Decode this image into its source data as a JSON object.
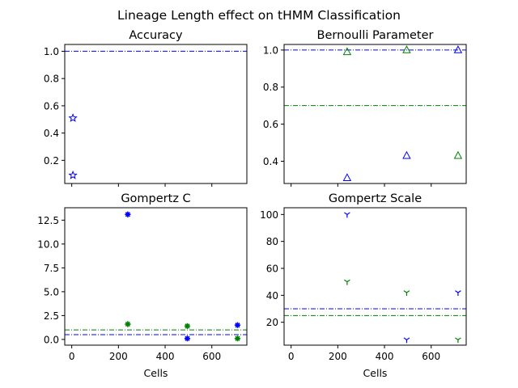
{
  "figure": {
    "suptitle": "Lineage Length effect on tHMM Classification"
  },
  "chart_data": [
    {
      "type": "scatter",
      "title": "Accuracy",
      "xlabel": "",
      "ylabel": "",
      "xlim": [
        -30,
        750
      ],
      "ylim": [
        0.03,
        1.05
      ],
      "xticks": [
        0,
        200,
        400,
        600
      ],
      "xtick_labels_visible": false,
      "yticks": [
        0.2,
        0.4,
        0.6,
        0.8,
        1.0
      ],
      "ytick_labels": [
        "0.2",
        "0.4",
        "0.6",
        "0.8",
        "1.0"
      ],
      "hlines": [
        {
          "y": 1.0,
          "color": "#0000ff",
          "style": "dashdot"
        }
      ],
      "series": [
        {
          "marker": "star",
          "color": "#0000ff",
          "x": [
            5,
            5
          ],
          "y": [
            0.51,
            0.09
          ]
        }
      ]
    },
    {
      "type": "scatter",
      "title": "Bernoulli Parameter",
      "xlabel": "",
      "ylabel": "",
      "xlim": [
        -30,
        750
      ],
      "ylim": [
        0.28,
        1.03
      ],
      "xticks": [
        0,
        200,
        400,
        600
      ],
      "xtick_labels_visible": false,
      "yticks": [
        0.4,
        0.6,
        0.8,
        1.0
      ],
      "ytick_labels": [
        "0.4",
        "0.6",
        "0.8",
        "1.0"
      ],
      "hlines": [
        {
          "y": 1.0,
          "color": "#0000ff",
          "style": "dashdot"
        },
        {
          "y": 0.7,
          "color": "#008000",
          "style": "dashdot"
        }
      ],
      "series": [
        {
          "marker": "triangle",
          "color": "#0000ff",
          "x": [
            240,
            495,
            715
          ],
          "y": [
            0.31,
            0.43,
            1.0
          ]
        },
        {
          "marker": "triangle",
          "color": "#008000",
          "x": [
            240,
            495,
            715
          ],
          "y": [
            0.99,
            1.0,
            0.43
          ]
        }
      ]
    },
    {
      "type": "scatter",
      "title": "Gompertz C",
      "xlabel": "Cells",
      "ylabel": "",
      "xlim": [
        -30,
        750
      ],
      "ylim": [
        -0.6,
        13.8
      ],
      "xticks": [
        0,
        200,
        400,
        600
      ],
      "xtick_labels": [
        "0",
        "200",
        "400",
        "600"
      ],
      "xtick_labels_visible": true,
      "yticks": [
        0.0,
        2.5,
        5.0,
        7.5,
        10.0,
        12.5
      ],
      "ytick_labels": [
        "0.0",
        "2.5",
        "5.0",
        "7.5",
        "10.0",
        "12.5"
      ],
      "hlines": [
        {
          "y": 1.0,
          "color": "#008000",
          "style": "dashdot"
        },
        {
          "y": 0.5,
          "color": "#0000ff",
          "style": "dashdot"
        }
      ],
      "series": [
        {
          "marker": "asterisk",
          "color": "#0000ff",
          "x": [
            240,
            495,
            710
          ],
          "y": [
            13.1,
            0.1,
            1.5
          ]
        },
        {
          "marker": "asterisk",
          "color": "#008000",
          "x": [
            240,
            495,
            710
          ],
          "y": [
            1.6,
            1.4,
            0.1
          ]
        }
      ]
    },
    {
      "type": "scatter",
      "title": "Gompertz Scale",
      "xlabel": "Cells",
      "ylabel": "",
      "xlim": [
        -30,
        750
      ],
      "ylim": [
        3,
        105
      ],
      "xticks": [
        0,
        200,
        400,
        600
      ],
      "xtick_labels": [
        "0",
        "200",
        "400",
        "600"
      ],
      "xtick_labels_visible": true,
      "yticks": [
        20,
        40,
        60,
        80,
        100
      ],
      "ytick_labels": [
        "20",
        "40",
        "60",
        "80",
        "100"
      ],
      "hlines": [
        {
          "y": 30,
          "color": "#0000ff",
          "style": "dashdot"
        },
        {
          "y": 25,
          "color": "#008000",
          "style": "dashdot"
        }
      ],
      "series": [
        {
          "marker": "tri_down",
          "color": "#0000ff",
          "x": [
            240,
            495,
            715
          ],
          "y": [
            100,
            7,
            42
          ]
        },
        {
          "marker": "tri_down",
          "color": "#008000",
          "x": [
            240,
            495,
            715
          ],
          "y": [
            50,
            42,
            7
          ]
        }
      ]
    }
  ]
}
